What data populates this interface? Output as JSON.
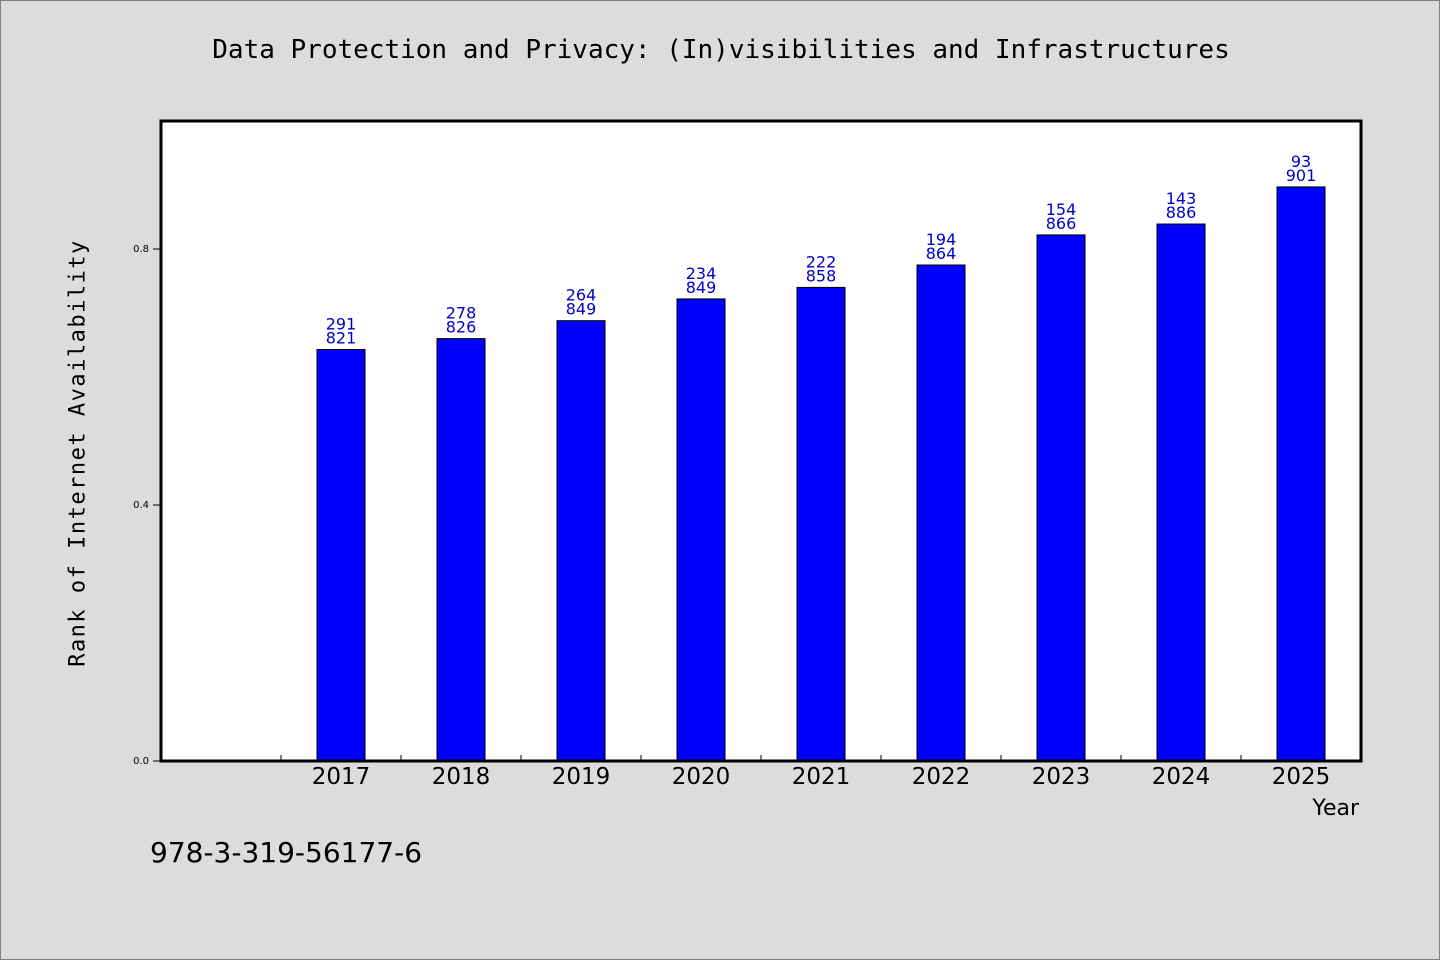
{
  "chart_data": {
    "type": "bar",
    "title": "Data Protection and Privacy: (In)visibilities and Infrastructures",
    "xlabel": "Year",
    "ylabel": "Rank of Internet Availability",
    "ylim": [
      0,
      1.0
    ],
    "yticks": [
      "0.0",
      "0.4",
      "0.8"
    ],
    "ytick_values": [
      0.0,
      0.4,
      0.8
    ],
    "grid": false,
    "categories": [
      "2017",
      "2018",
      "2019",
      "2020",
      "2021",
      "2022",
      "2023",
      "2024",
      "2025"
    ],
    "values": [
      0.643,
      0.66,
      0.688,
      0.722,
      0.74,
      0.775,
      0.822,
      0.839,
      0.897
    ],
    "bar_labels_top": [
      "291",
      "278",
      "264",
      "234",
      "222",
      "194",
      "154",
      "143",
      "93"
    ],
    "bar_labels_bottom": [
      "821",
      "826",
      "849",
      "849",
      "858",
      "864",
      "866",
      "886",
      "901"
    ],
    "bar_color": "#0000ff",
    "label_color": "#0000cc"
  },
  "footer": {
    "isbn": "978-3-319-56177-6"
  },
  "colors": {
    "background": "#dcdcdc",
    "plot_background": "#ffffff",
    "axis": "#000000"
  }
}
